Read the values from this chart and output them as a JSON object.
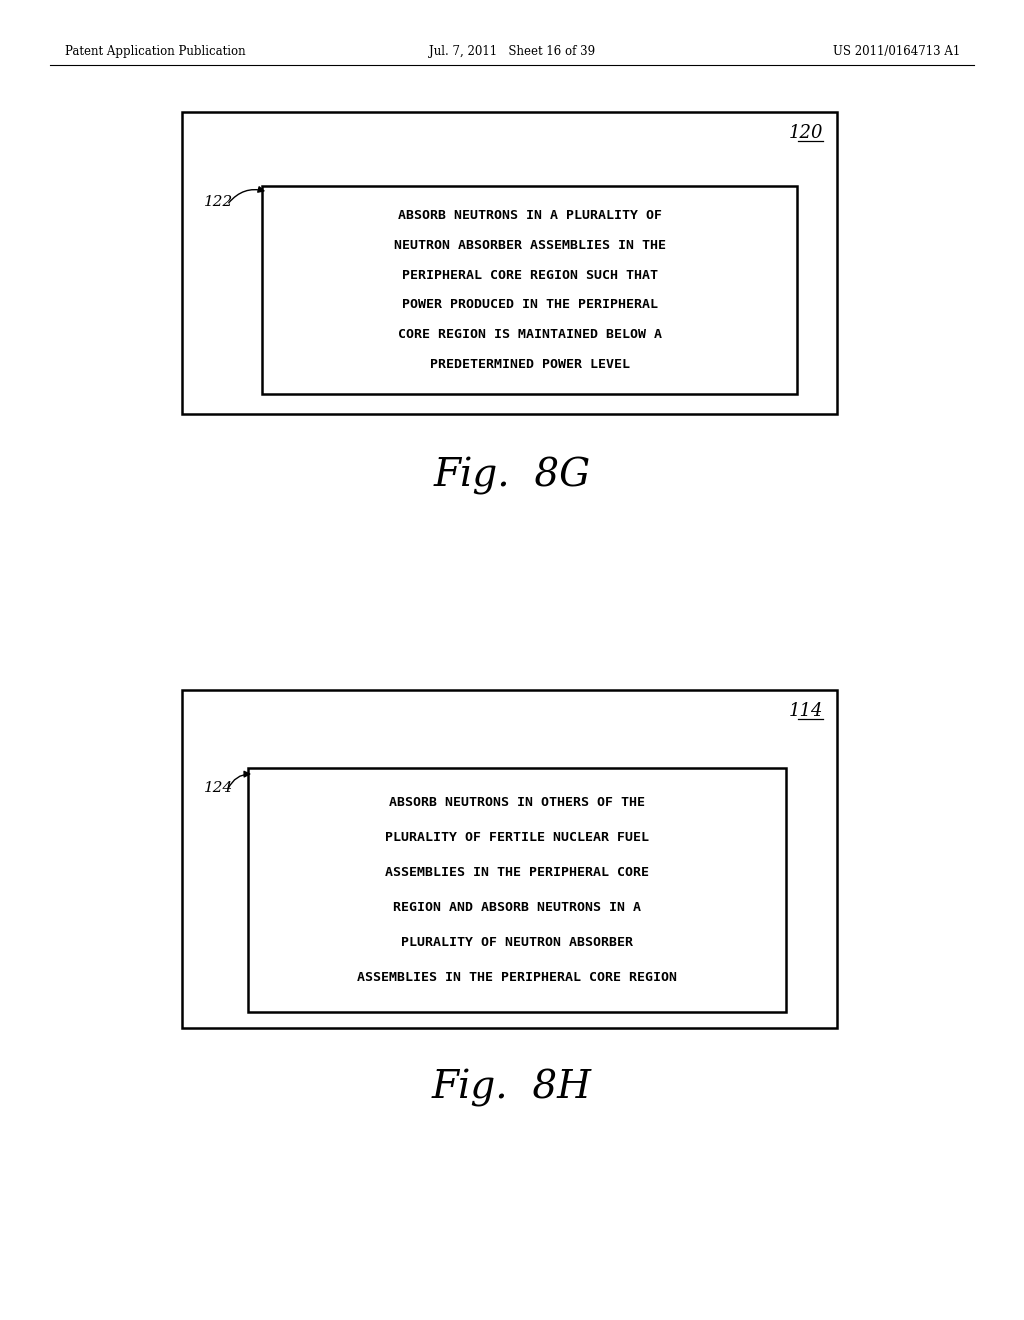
{
  "bg_color": "#ffffff",
  "header_left": "Patent Application Publication",
  "header_center": "Jul. 7, 2011   Sheet 16 of 39",
  "header_right": "US 2011/0164713 A1",
  "fig8g": {
    "outer_label": "120",
    "inner_label": "122",
    "text_lines": [
      "ABSORB NEUTRONS IN A PLURALITY OF",
      "NEUTRON ABSORBER ASSEMBLIES IN THE",
      "PERIPHERAL CORE REGION SUCH THAT",
      "POWER PRODUCED IN THE PERIPHERAL",
      "CORE REGION IS MAINTAINED BELOW A",
      "PREDETERMINED POWER LEVEL"
    ],
    "caption": "Fig.  8G"
  },
  "fig8h": {
    "outer_label": "114",
    "inner_label": "124",
    "text_lines": [
      "ABSORB NEUTRONS IN OTHERS OF THE",
      "PLURALITY OF FERTILE NUCLEAR FUEL",
      "ASSEMBLIES IN THE PERIPHERAL CORE",
      "REGION AND ABSORB NEUTRONS IN A",
      "PLURALITY OF NEUTRON ABSORBER",
      "ASSEMBLIES IN THE PERIPHERAL CORE REGION"
    ],
    "caption": "Fig.  8H"
  }
}
